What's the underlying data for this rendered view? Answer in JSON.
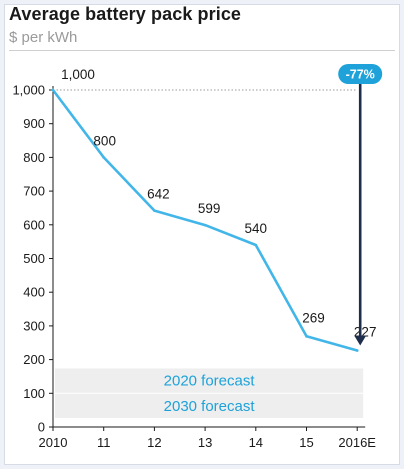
{
  "chart_data": {
    "type": "line",
    "title": "Average battery pack price",
    "subtitle": "$ per kWh",
    "categories": [
      "2010",
      "11",
      "12",
      "13",
      "14",
      "15",
      "2016E"
    ],
    "series": [
      {
        "values": [
          1000,
          800,
          642,
          599,
          540,
          269,
          227
        ]
      }
    ],
    "data_labels": [
      "1,000",
      "800",
      "642",
      "599",
      "540",
      "269",
      "227"
    ],
    "y_ticks": [
      0,
      100,
      200,
      300,
      400,
      500,
      600,
      700,
      800,
      900,
      1000
    ],
    "y_tick_labels": [
      "0",
      "100",
      "200",
      "300",
      "400",
      "500",
      "600",
      "700",
      "800",
      "900",
      "1,000"
    ],
    "ylim": [
      0,
      1000
    ],
    "grid": false,
    "reference_line": {
      "value": 1000,
      "style": "dotted"
    },
    "forecast_bands": [
      {
        "label": "2020 forecast",
        "from": 100,
        "to": 175
      },
      {
        "label": "2030 forecast",
        "from": 25,
        "to": 100
      }
    ],
    "callout": {
      "label": "-77%",
      "from": 1000,
      "to": 227,
      "at_category": "2016E"
    },
    "colors": {
      "line": "#42b6e8",
      "callout": "#1ea2d9",
      "arrow": "#1f2d4d",
      "band": "#eeeeee",
      "band_text": "#1ea2d9"
    }
  }
}
